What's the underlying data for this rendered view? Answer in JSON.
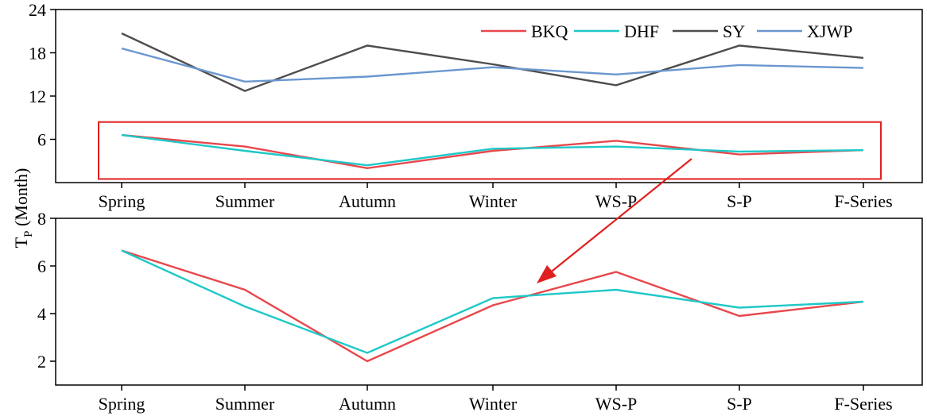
{
  "chart_data": [
    {
      "type": "line",
      "ylabel": "T",
      "ylabel_subscript": "P",
      "ylabel_suffix": "(Month)",
      "categories": [
        "Spring",
        "Summer",
        "Autumn",
        "Winter",
        "WS-P",
        "S-P",
        "F-Series"
      ],
      "ylim": [
        0,
        24
      ],
      "yticks": [
        6,
        12,
        18,
        24
      ],
      "legend_position": "top-right",
      "series": [
        {
          "name": "BKQ",
          "color": "#e8474c",
          "values": [
            6.6,
            5.0,
            2.0,
            4.4,
            5.8,
            3.9,
            4.5
          ]
        },
        {
          "name": "DHF",
          "color": "#1ec8c8",
          "values": [
            6.6,
            4.4,
            2.4,
            4.7,
            5.0,
            4.3,
            4.5
          ]
        },
        {
          "name": "SY",
          "color": "#4d4d4d",
          "values": [
            20.7,
            12.7,
            19.0,
            16.4,
            13.5,
            19.0,
            17.3
          ]
        },
        {
          "name": "XJWP",
          "color": "#6a97cf",
          "values": [
            18.6,
            14.0,
            14.7,
            16.0,
            15.0,
            16.3,
            15.9
          ]
        }
      ],
      "highlight_box": {
        "ymin": 0.5,
        "ymax": 8.4,
        "color": "#e02020"
      }
    },
    {
      "type": "line",
      "categories": [
        "Spring",
        "Summer",
        "Autumn",
        "Winter",
        "WS-P",
        "S-P",
        "F-Series"
      ],
      "ylim": [
        1,
        8
      ],
      "yticks": [
        2,
        4,
        6,
        8
      ],
      "series": [
        {
          "name": "BKQ",
          "color": "#e8474c",
          "values": [
            6.65,
            5.0,
            2.0,
            4.35,
            5.75,
            3.9,
            4.5
          ]
        },
        {
          "name": "DHF",
          "color": "#1ec8c8",
          "values": [
            6.65,
            4.3,
            2.35,
            4.65,
            5.0,
            4.25,
            4.5
          ]
        }
      ],
      "arrow_color": "#e02020"
    }
  ]
}
